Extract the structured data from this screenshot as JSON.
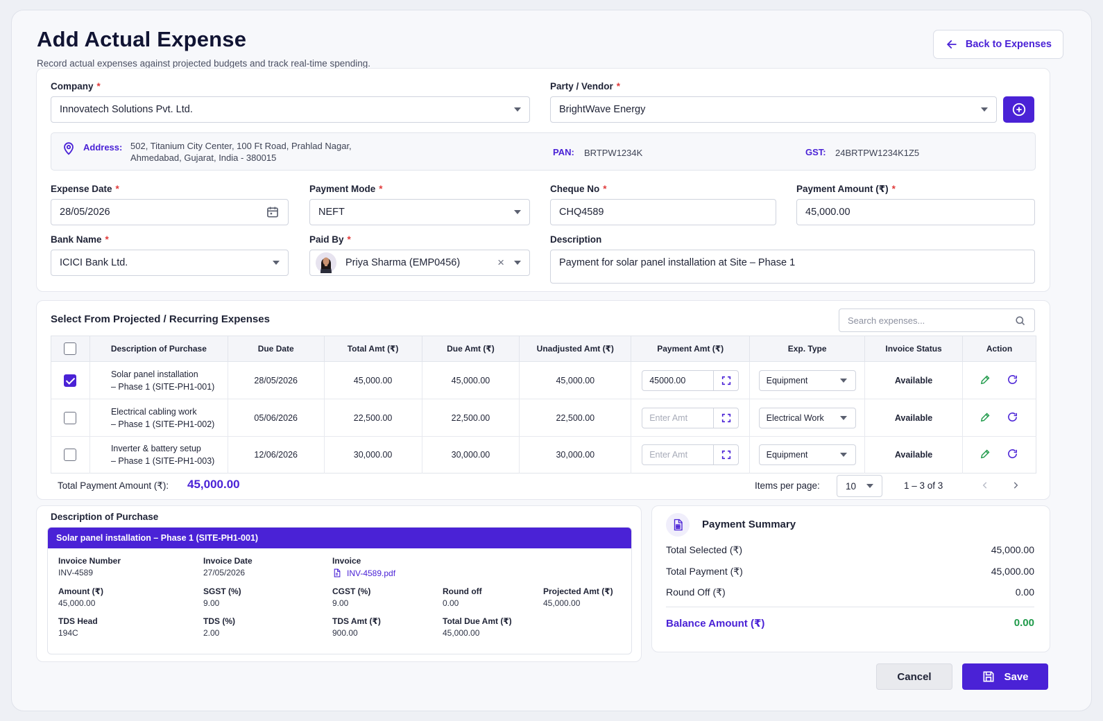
{
  "header": {
    "title": "Add Actual Expense",
    "subtitle": "Record actual expenses against projected budgets and track real-time spending.",
    "back_label": "Back to Expenses"
  },
  "form": {
    "company": {
      "label": "Company",
      "value": "Innovatech Solutions Pvt. Ltd."
    },
    "vendor": {
      "label": "Party / Vendor",
      "value": "BrightWave Energy"
    },
    "address": {
      "label": "Address:",
      "line1": "502, Titanium City Center, 100 Ft Road, Prahlad Nagar,",
      "line2": "Ahmedabad, Gujarat, India - 380015",
      "pan_label": "PAN:",
      "pan": "BRTPW1234K",
      "gst_label": "GST:",
      "gst": "24BRTPW1234K1Z5"
    },
    "expense_date": {
      "label": "Expense Date",
      "value": "28/05/2026"
    },
    "payment_mode": {
      "label": "Payment Mode",
      "value": "NEFT"
    },
    "cheque_no": {
      "label": "Cheque No",
      "value": "CHQ4589"
    },
    "payment_amount": {
      "label": "Payment Amount (₹)",
      "value": "45,000.00"
    },
    "bank_name": {
      "label": "Bank Name",
      "value": "ICICI Bank Ltd."
    },
    "paid_by": {
      "label": "Paid By",
      "value": "Priya Sharma (EMP0456)",
      "clear": "×"
    },
    "description": {
      "label": "Description",
      "value": "Payment for solar panel installation at Site – Phase 1"
    },
    "required_mark": "*"
  },
  "expenses": {
    "title": "Select From Projected / Recurring Expenses",
    "search_placeholder": "Search expenses...",
    "columns": [
      "Description of Purchase",
      "Due Date",
      "Total Amt (₹)",
      "Due Amt (₹)",
      "Unadjusted Amt (₹)",
      "Payment Amt (₹)",
      "Exp. Type",
      "Invoice Status",
      "Action"
    ],
    "rows": [
      {
        "desc1": "Solar panel installation",
        "desc2": "– Phase 1 (SITE-PH1-001)",
        "due_date": "28/05/2026",
        "total": "45,000.00",
        "due": "45,000.00",
        "unadjusted": "45,000.00",
        "payment": "45000.00",
        "type": "Equipment",
        "status": "Available",
        "checked": true
      },
      {
        "desc1": "Electrical cabling work",
        "desc2": "– Phase 1 (SITE-PH1-002)",
        "due_date": "05/06/2026",
        "total": "22,500.00",
        "due": "22,500.00",
        "unadjusted": "22,500.00",
        "payment_placeholder": "Enter Amt",
        "type": "Electrical Work",
        "status": "Available",
        "checked": false
      },
      {
        "desc1": "Inverter & battery setup",
        "desc2": "– Phase 1 (SITE-PH1-003)",
        "due_date": "12/06/2026",
        "total": "30,000.00",
        "due": "30,000.00",
        "unadjusted": "30,000.00",
        "payment_placeholder": "Enter Amt",
        "type": "Equipment",
        "status": "Available",
        "checked": false
      }
    ],
    "total_label": "Total Payment Amount (₹):",
    "total_value": "45,000.00",
    "items_per_page_label": "Items per page:",
    "items_per_page": "10",
    "range": "1 – 3 of 3"
  },
  "purchase_detail": {
    "title": "Description of Purchase",
    "banner": "Solar panel installation – Phase 1 (SITE-PH1-001)",
    "invoice_number_label": "Invoice Number",
    "invoice_number": "INV-4589",
    "invoice_date_label": "Invoice Date",
    "invoice_date": "27/05/2026",
    "invoice_label": "Invoice",
    "invoice_file": "INV-4589.pdf",
    "amount_label": "Amount (₹)",
    "amount": "45,000.00",
    "sgst_label": "SGST (%)",
    "sgst": "9.00",
    "cgst_label": "CGST (%)",
    "cgst": "9.00",
    "round_off_label": "Round off",
    "round_off": "0.00",
    "projected_label": "Projected Amt (₹)",
    "projected": "45,000.00",
    "tds_head_label": "TDS Head",
    "tds_head": "194C",
    "tds_pct_label": "TDS (%)",
    "tds_pct": "2.00",
    "tds_amt_label": "TDS Amt (₹)",
    "tds_amt": "900.00",
    "total_due_label": "Total Due Amt (₹)",
    "total_due": "45,000.00"
  },
  "summary": {
    "title": "Payment Summary",
    "total_selected_label": "Total Selected (₹)",
    "total_selected": "45,000.00",
    "total_payment_label": "Total Payment (₹)",
    "total_payment": "45,000.00",
    "round_off_label": "Round Off (₹)",
    "round_off": "0.00",
    "balance_label": "Balance Amount (₹)",
    "balance": "0.00"
  },
  "footer": {
    "cancel_label": "Cancel",
    "save_label": "Save"
  },
  "colors": {
    "accent": "#4a22d6",
    "success": "#1f9a4a",
    "required": "#e03a3a"
  }
}
